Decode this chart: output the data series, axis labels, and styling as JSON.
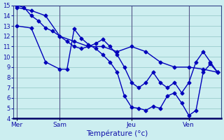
{
  "xlabel": "Température (°c)",
  "background_color": "#cceef0",
  "grid_color": "#99cccc",
  "line_color": "#0000bb",
  "vline_color": "#555588",
  "ylim": [
    4,
    15
  ],
  "yticks": [
    4,
    5,
    6,
    7,
    8,
    9,
    10,
    11,
    12,
    13,
    14,
    15
  ],
  "xtick_labels": [
    "Mer",
    "Sam",
    "Jeu",
    "Ven"
  ],
  "xtick_positions": [
    0,
    6,
    16,
    24
  ],
  "vline_positions": [
    0,
    6,
    16,
    24
  ],
  "line1_x": [
    0,
    2,
    4,
    6,
    8,
    10,
    12,
    14,
    16,
    18,
    20,
    22,
    24,
    26,
    28
  ],
  "line1_y": [
    14.8,
    14.5,
    14.0,
    12.0,
    11.5,
    11.0,
    11.0,
    10.5,
    11.0,
    10.5,
    9.5,
    9.0,
    9.0,
    8.8,
    8.5
  ],
  "line2_x": [
    0,
    1,
    2,
    3,
    4,
    5,
    6,
    7,
    8,
    9,
    10,
    11,
    12,
    13,
    14,
    15,
    16,
    17,
    18,
    19,
    20,
    21,
    22,
    23,
    24,
    25,
    26,
    27,
    28
  ],
  "line2_y": [
    15.0,
    14.8,
    14.0,
    13.5,
    12.8,
    12.5,
    12.0,
    11.5,
    11.0,
    10.8,
    11.0,
    11.3,
    11.7,
    11.0,
    10.2,
    9.0,
    7.5,
    7.0,
    7.5,
    8.5,
    7.5,
    7.0,
    7.5,
    6.5,
    7.5,
    9.5,
    10.5,
    9.5,
    8.5
  ],
  "line3_x": [
    0,
    2,
    4,
    6,
    7,
    8,
    9,
    10,
    11,
    12,
    13,
    14,
    15,
    16,
    17,
    18,
    19,
    20,
    21,
    22,
    23,
    24,
    25,
    26,
    27,
    28
  ],
  "line3_y": [
    13.0,
    12.8,
    9.5,
    8.8,
    8.8,
    12.7,
    11.8,
    11.2,
    10.8,
    10.2,
    9.5,
    8.5,
    6.2,
    5.1,
    5.0,
    4.8,
    5.2,
    5.0,
    6.2,
    6.5,
    5.5,
    4.3,
    4.8,
    8.5,
    9.3,
    8.5
  ],
  "marker": "D",
  "markersize": 2.5,
  "linewidth": 1.0
}
